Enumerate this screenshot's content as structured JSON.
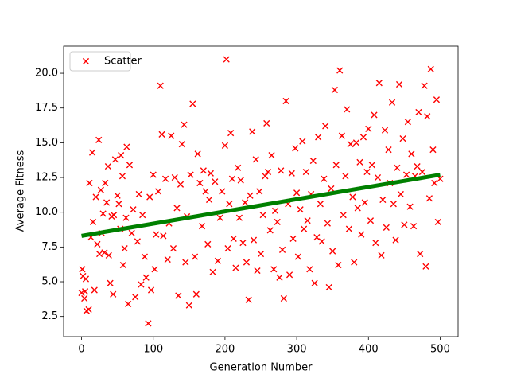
{
  "chart_data": {
    "type": "scatter",
    "xlabel": "Generation Number",
    "ylabel": "Average Fitness",
    "xlim": [
      -25,
      525
    ],
    "ylim": [
      1.05,
      21.95
    ],
    "xticks": [
      0,
      100,
      200,
      300,
      400,
      500
    ],
    "yticks": [
      2.5,
      {
        "value": 5,
        "label": "5.0"
      },
      {
        "value": 7.5,
        "label": "7.5"
      },
      {
        "value": 10,
        "label": "10.0"
      },
      {
        "value": 12.5,
        "label": "12.5"
      },
      {
        "value": 15,
        "label": "15.0"
      },
      {
        "value": 17.5,
        "label": "17.5"
      },
      {
        "value": 20,
        "label": "20.0"
      }
    ],
    "legend": "upper left",
    "series": [
      {
        "name": "Scatter",
        "color": "#ff0000",
        "x": [
          0,
          1,
          2,
          4,
          5,
          6,
          7,
          10,
          11,
          13,
          15,
          16,
          18,
          20,
          22,
          24,
          25,
          27,
          28,
          30,
          32,
          33,
          35,
          37,
          38,
          40,
          42,
          44,
          45,
          47,
          50,
          52,
          54,
          55,
          57,
          58,
          60,
          62,
          63,
          65,
          67,
          70,
          72,
          75,
          78,
          80,
          83,
          85,
          88,
          90,
          93,
          95,
          97,
          100,
          102,
          104,
          107,
          110,
          112,
          114,
          117,
          120,
          122,
          125,
          128,
          130,
          133,
          135,
          138,
          140,
          143,
          145,
          147,
          150,
          152,
          155,
          158,
          160,
          162,
          165,
          168,
          170,
          173,
          176,
          178,
          180,
          183,
          186,
          190,
          193,
          196,
          200,
          202,
          204,
          206,
          208,
          210,
          212,
          215,
          218,
          220,
          222,
          225,
          228,
          230,
          233,
          235,
          238,
          240,
          243,
          245,
          248,
          250,
          253,
          256,
          258,
          260,
          263,
          265,
          268,
          270,
          273,
          276,
          278,
          280,
          282,
          285,
          288,
          290,
          293,
          295,
          298,
          300,
          302,
          305,
          308,
          310,
          313,
          315,
          318,
          320,
          323,
          325,
          328,
          330,
          333,
          335,
          338,
          340,
          343,
          345,
          348,
          350,
          353,
          355,
          358,
          360,
          363,
          365,
          368,
          370,
          373,
          375,
          378,
          380,
          383,
          385,
          388,
          390,
          393,
          395,
          398,
          400,
          403,
          405,
          408,
          410,
          413,
          415,
          418,
          420,
          423,
          425,
          428,
          430,
          433,
          435,
          438,
          440,
          443,
          445,
          448,
          450,
          453,
          455,
          458,
          460,
          463,
          465,
          468,
          470,
          472,
          475,
          478,
          480,
          482,
          485,
          487,
          490,
          492,
          495,
          497,
          500
        ],
        "values": [
          4.2,
          5.9,
          5.4,
          3.8,
          4.3,
          5.2,
          2.9,
          3.0,
          12.1,
          8.2,
          14.3,
          9.3,
          4.4,
          11.1,
          7.7,
          15.2,
          7.0,
          11.6,
          8.5,
          9.9,
          7.1,
          12.1,
          10.7,
          13.3,
          6.9,
          4.9,
          9.7,
          4.1,
          9.8,
          13.8,
          11.2,
          10.6,
          8.8,
          14.1,
          12.6,
          6.2,
          7.4,
          9.6,
          14.7,
          3.4,
          13.4,
          8.5,
          10.2,
          3.9,
          7.9,
          11.3,
          4.8,
          9.8,
          6.8,
          5.3,
          2.0,
          11.1,
          4.4,
          12.7,
          5.9,
          8.4,
          11.5,
          19.1,
          15.6,
          8.3,
          12.4,
          6.6,
          9.2,
          15.5,
          7.4,
          12.5,
          10.3,
          4.0,
          12.0,
          14.9,
          16.3,
          6.4,
          9.7,
          3.3,
          12.7,
          17.8,
          6.8,
          4.1,
          14.2,
          12.1,
          9.0,
          13.0,
          11.5,
          7.7,
          10.9,
          12.8,
          5.7,
          12.2,
          6.5,
          9.6,
          11.5,
          14.8,
          21.0,
          7.4,
          10.6,
          15.7,
          12.4,
          8.1,
          6.0,
          13.2,
          9.6,
          12.3,
          7.8,
          10.7,
          6.4,
          3.7,
          11.2,
          15.8,
          8.0,
          13.8,
          5.8,
          11.5,
          7.0,
          9.8,
          12.6,
          16.4,
          12.9,
          8.7,
          14.1,
          5.9,
          10.1,
          9.3,
          5.3,
          13.0,
          7.3,
          3.8,
          18.0,
          10.6,
          5.5,
          12.8,
          8.1,
          14.6,
          11.4,
          6.8,
          10.2,
          15.1,
          8.8,
          12.9,
          9.4,
          5.9,
          11.3,
          13.7,
          4.9,
          8.2,
          15.4,
          10.6,
          7.9,
          12.4,
          16.2,
          9.2,
          4.6,
          11.7,
          7.2,
          18.8,
          13.4,
          6.2,
          20.2,
          15.5,
          9.8,
          12.6,
          17.4,
          8.8,
          14.9,
          11.1,
          6.4,
          15.0,
          10.3,
          13.6,
          8.4,
          15.4,
          10.7,
          12.9,
          16.0,
          9.4,
          13.4,
          17.0,
          7.8,
          12.5,
          19.3,
          6.9,
          10.9,
          15.9,
          8.9,
          14.5,
          12.1,
          17.9,
          10.6,
          8.0,
          13.2,
          19.2,
          11.3,
          15.3,
          9.1,
          12.7,
          16.5,
          10.4,
          14.2,
          9.0,
          12.6,
          13.3,
          17.2,
          7.0,
          12.9,
          19.1,
          6.1,
          16.9,
          11.0,
          20.3,
          14.5,
          12.1,
          18.1,
          9.3,
          12.4
        ]
      }
    ],
    "trend": {
      "type": "line",
      "color": "#008000",
      "x": [
        0,
        500
      ],
      "values": [
        8.3,
        12.7
      ]
    }
  }
}
